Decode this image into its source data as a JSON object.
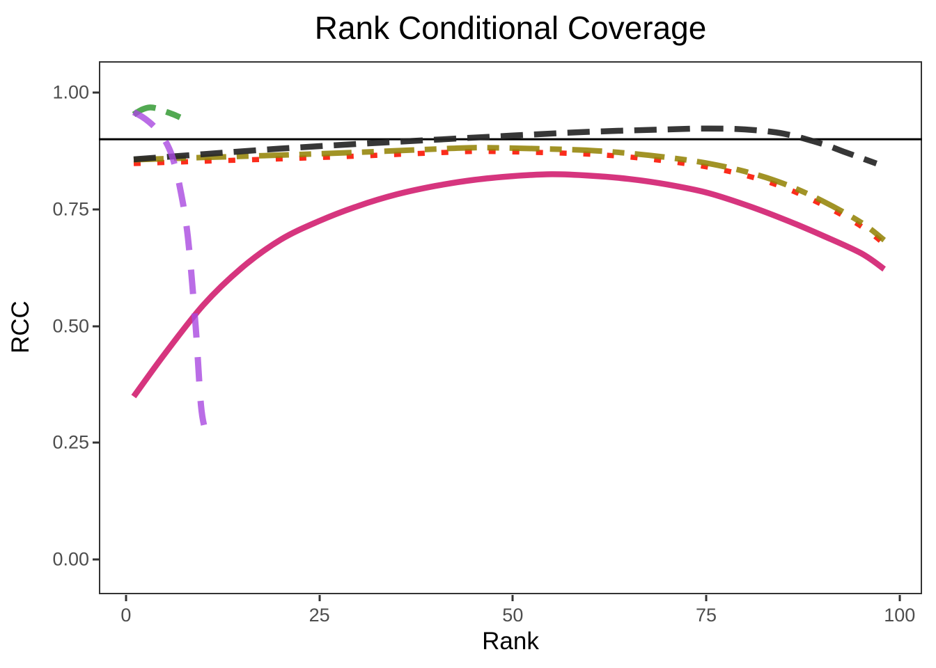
{
  "title": "Rank Conditional Coverage",
  "colors": {
    "background": "#ffffff",
    "panel_border": "#333333",
    "axis_title": "#000000",
    "tick_label": "#4d4d4d",
    "tick_mark": "#333333",
    "reference_line": "#000000"
  },
  "y_axis": {
    "label": "RCC",
    "ticks": [
      "0.00",
      "0.25",
      "0.50",
      "0.75",
      "1.00"
    ]
  },
  "x_axis": {
    "label": "Rank",
    "ticks": [
      "0",
      "25",
      "50",
      "75",
      "100"
    ]
  },
  "chart_data": {
    "type": "line",
    "title": "Rank Conditional Coverage",
    "xlabel": "Rank",
    "ylabel": "RCC",
    "x_ticks": [
      0,
      25,
      50,
      75,
      100
    ],
    "y_ticks": [
      0.0,
      0.25,
      0.5,
      0.75,
      1.0
    ],
    "xlim": [
      -3.5,
      102.9
    ],
    "ylim": [
      -0.0745,
      1.0671
    ],
    "grid": false,
    "legend": "none",
    "reference_line": {
      "y": 0.9,
      "color": "#000000",
      "style": "solid",
      "width": 3
    },
    "series": [
      {
        "name": "red-dotted",
        "color": "#fb2c1c",
        "width": 7.5,
        "dash": "10 24",
        "opacity": 1,
        "x": [
          1,
          10,
          20,
          30,
          40,
          45,
          50,
          55,
          60,
          65,
          70,
          75,
          80,
          85,
          90,
          95,
          98
        ],
        "y": [
          0.848,
          0.853,
          0.858,
          0.864,
          0.871,
          0.874,
          0.873,
          0.871,
          0.868,
          0.862,
          0.853,
          0.841,
          0.823,
          0.797,
          0.76,
          0.714,
          0.676
        ]
      },
      {
        "name": "olive-twodash",
        "color": "#948408",
        "width": 8,
        "dash": "43 15 17 15",
        "opacity": 0.88,
        "x": [
          1,
          10,
          20,
          30,
          40,
          45,
          50,
          55,
          60,
          65,
          70,
          75,
          80,
          85,
          90,
          95,
          98
        ],
        "y": [
          0.856,
          0.861,
          0.866,
          0.872,
          0.879,
          0.882,
          0.881,
          0.879,
          0.876,
          0.87,
          0.861,
          0.849,
          0.831,
          0.805,
          0.768,
          0.722,
          0.684
        ]
      },
      {
        "name": "black-dashed",
        "color": "#262626",
        "width": 8.5,
        "dash": "32 16",
        "opacity": 0.92,
        "x": [
          1,
          10,
          20,
          30,
          40,
          50,
          60,
          70,
          75,
          80,
          85,
          90,
          93,
          97
        ],
        "y": [
          0.857,
          0.868,
          0.88,
          0.89,
          0.899,
          0.908,
          0.916,
          0.921,
          0.923,
          0.921,
          0.912,
          0.89,
          0.872,
          0.848
        ]
      },
      {
        "name": "magenta-solid",
        "color": "#d6357e",
        "width": 8.5,
        "dash": null,
        "opacity": 1,
        "x": [
          1,
          5,
          10,
          15,
          20,
          25,
          30,
          35,
          40,
          45,
          50,
          55,
          60,
          65,
          70,
          75,
          80,
          85,
          90,
          95,
          98
        ],
        "y": [
          0.349,
          0.44,
          0.545,
          0.625,
          0.685,
          0.725,
          0.757,
          0.782,
          0.8,
          0.813,
          0.821,
          0.825,
          0.822,
          0.815,
          0.803,
          0.786,
          0.76,
          0.729,
          0.694,
          0.656,
          0.622
        ]
      },
      {
        "name": "green-dashed",
        "color": "#3fa03f",
        "width": 8.5,
        "dash": "34 16",
        "opacity": 0.9,
        "x": [
          1,
          2,
          3,
          4,
          5,
          6,
          7
        ],
        "y": [
          0.953,
          0.963,
          0.968,
          0.966,
          0.96,
          0.954,
          0.947
        ]
      },
      {
        "name": "purple-dashed",
        "color": "#a948e0",
        "width": 9,
        "dash": "35 28",
        "opacity": 0.8,
        "x": [
          1,
          2,
          3,
          4,
          5,
          6,
          7,
          8,
          9,
          9.7,
          10.3
        ],
        "y": [
          0.958,
          0.949,
          0.937,
          0.921,
          0.899,
          0.862,
          0.795,
          0.69,
          0.5,
          0.33,
          0.273
        ]
      }
    ]
  },
  "panel_geometry": {
    "note": "reference line at y=0.90 spans full panel width"
  }
}
